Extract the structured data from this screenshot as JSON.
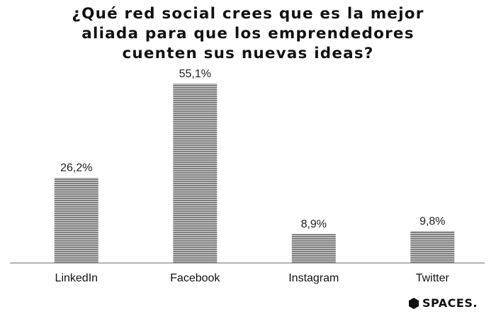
{
  "chart_data": {
    "type": "bar",
    "title_lines": [
      "¿Qué red social crees que es la mejor",
      "aliada para que los emprendedores",
      "cuenten sus nuevas ideas?"
    ],
    "categories": [
      "LinkedIn",
      "Facebook",
      "Instagram",
      "Twitter"
    ],
    "values": [
      26.2,
      55.1,
      8.9,
      9.8
    ],
    "value_labels": [
      "26,2%",
      "55,1%",
      "8,9%",
      "9,8%"
    ],
    "xlabel": "",
    "ylabel": "",
    "ylim": [
      0,
      55.1
    ],
    "grid": false,
    "legend": "none",
    "bar_fill": "horizontal gray stripes",
    "colors": {
      "stripe_dark": "#6e6e6e",
      "stripe_light": "#d2d2d2",
      "axis": "#9a9a9a"
    }
  },
  "brand": {
    "logo_icon": "hexagon-icon",
    "name": "SPACES."
  }
}
